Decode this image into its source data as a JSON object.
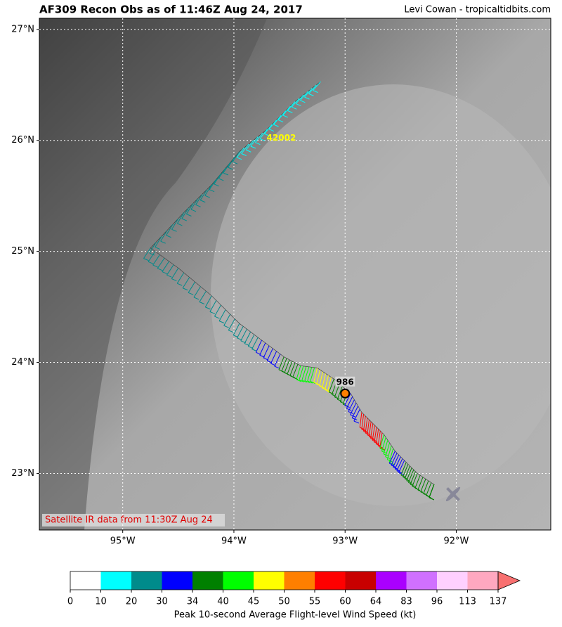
{
  "chart_data": {
    "type": "map",
    "title": "AF309 Recon Obs as of 11:46Z Aug 24, 2017",
    "credit": "Levi Cowan - tropicaltidbits.com",
    "note": "Satellite IR data from 11:30Z Aug 24",
    "xlim": [
      -95.75,
      -91.15
    ],
    "ylim": [
      22.49,
      27.1
    ],
    "xticks": [
      {
        "value": -95,
        "label": "95°W"
      },
      {
        "value": -94,
        "label": "94°W"
      },
      {
        "value": -93,
        "label": "93°W"
      },
      {
        "value": -92,
        "label": "92°W"
      }
    ],
    "yticks": [
      {
        "value": 23,
        "label": "23°N"
      },
      {
        "value": 24,
        "label": "24°N"
      },
      {
        "value": 25,
        "label": "25°N"
      },
      {
        "value": 26,
        "label": "26°N"
      },
      {
        "value": 27,
        "label": "27°N"
      }
    ],
    "grid": true,
    "track": [
      {
        "lon": -93.22,
        "lat": 26.53,
        "wind": 15
      },
      {
        "lon": -93.45,
        "lat": 26.35,
        "wind": 16
      },
      {
        "lon": -93.7,
        "lat": 26.1,
        "wind": 18
      },
      {
        "lon": -93.95,
        "lat": 25.9,
        "wind": 22
      },
      {
        "lon": -94.2,
        "lat": 25.6,
        "wind": 24
      },
      {
        "lon": -94.45,
        "lat": 25.35,
        "wind": 25
      },
      {
        "lon": -94.75,
        "lat": 25.03,
        "wind": 22
      },
      {
        "lon": -94.5,
        "lat": 24.85,
        "wind": 24
      },
      {
        "lon": -94.2,
        "lat": 24.6,
        "wind": 27
      },
      {
        "lon": -93.95,
        "lat": 24.35,
        "wind": 29
      },
      {
        "lon": -93.75,
        "lat": 24.2,
        "wind": 32
      },
      {
        "lon": -93.55,
        "lat": 24.05,
        "wind": 37
      },
      {
        "lon": -93.4,
        "lat": 23.97,
        "wind": 43
      },
      {
        "lon": -93.25,
        "lat": 23.95,
        "wind": 48
      },
      {
        "lon": -93.1,
        "lat": 23.85,
        "wind": 38
      },
      {
        "lon": -92.95,
        "lat": 23.72,
        "wind": 30
      },
      {
        "lon": -92.85,
        "lat": 23.55,
        "wind": 58
      },
      {
        "lon": -92.75,
        "lat": 23.45,
        "wind": 56
      },
      {
        "lon": -92.65,
        "lat": 23.35,
        "wind": 44
      },
      {
        "lon": -92.55,
        "lat": 23.2,
        "wind": 32
      },
      {
        "lon": -92.45,
        "lat": 23.1,
        "wind": 36
      },
      {
        "lon": -92.35,
        "lat": 23.0,
        "wind": 37
      },
      {
        "lon": -92.2,
        "lat": 22.9,
        "wind": 38
      }
    ],
    "buoy": {
      "label": "42002",
      "lon": -93.7,
      "lat": 26.0
    },
    "center": {
      "pressure": 986,
      "lon": -93.0,
      "lat": 23.72
    },
    "colorbar": {
      "bounds": [
        0,
        10,
        20,
        30,
        34,
        40,
        45,
        50,
        55,
        60,
        64,
        83,
        96,
        113,
        137
      ],
      "colors": [
        "#ffffff",
        "#00ffff",
        "#008b8b",
        "#0000ff",
        "#008000",
        "#00ff00",
        "#ffff00",
        "#ff7f00",
        "#ff0000",
        "#c80000",
        "#aa00ff",
        "#d070ff",
        "#ffd0ff",
        "#ffa8c0"
      ],
      "extend_color": "#f87070",
      "label": "Peak 10-second Average Flight-level Wind Speed (kt)"
    }
  }
}
